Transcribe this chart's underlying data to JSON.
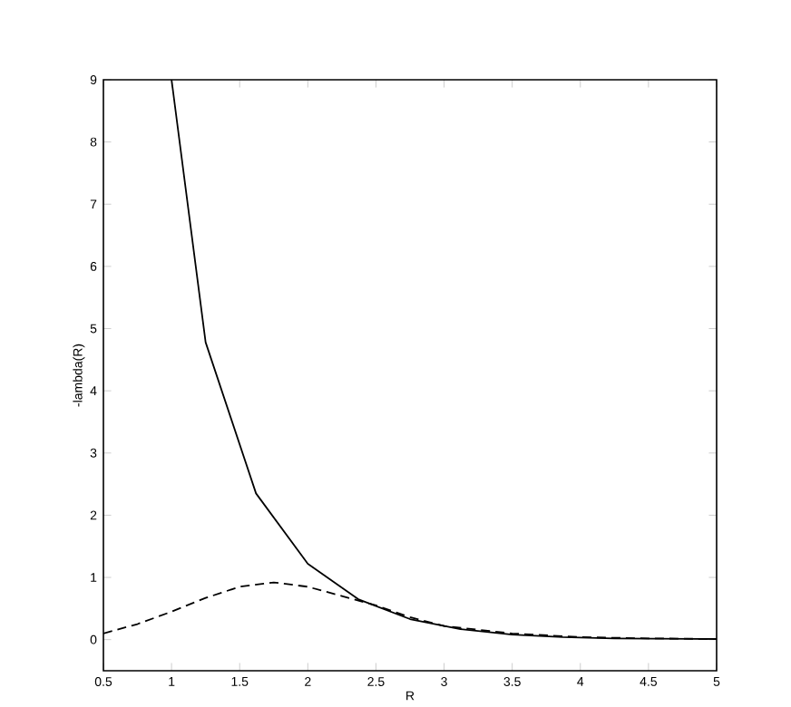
{
  "chart_data": {
    "type": "line",
    "xlabel": "R",
    "ylabel": "-lambda(R)",
    "xlim": [
      0.5,
      5
    ],
    "xticks": [
      0.5,
      1,
      1.5,
      2,
      2.5,
      3,
      3.5,
      4,
      4.5,
      5
    ],
    "ylim": [
      -0.5,
      9
    ],
    "yticks": [
      0,
      1,
      2,
      3,
      4,
      5,
      6,
      7,
      8,
      9
    ],
    "grid": false,
    "marker": "none",
    "series": [
      {
        "color": "#000000",
        "line_style": "solid",
        "x": [
          1.0,
          1.25,
          1.62,
          2.0,
          2.37,
          2.75,
          3.12,
          3.5,
          3.87,
          4.25,
          5.0
        ],
        "values": [
          9,
          4.78,
          2.35,
          1.22,
          0.65,
          0.33,
          0.17,
          0.08,
          0.04,
          0.02,
          0.01
        ]
      },
      {
        "color": "#000000",
        "line_style": "dashed",
        "x": [
          0.5,
          0.75,
          1.0,
          1.25,
          1.5,
          1.75,
          2.0,
          2.25,
          2.5,
          2.75,
          3.0,
          3.5,
          4.0,
          4.5,
          5.0
        ],
        "values": [
          0.1,
          0.25,
          0.45,
          0.67,
          0.85,
          0.92,
          0.85,
          0.7,
          0.55,
          0.36,
          0.22,
          0.1,
          0.04,
          0.02,
          0.01
        ]
      }
    ]
  }
}
